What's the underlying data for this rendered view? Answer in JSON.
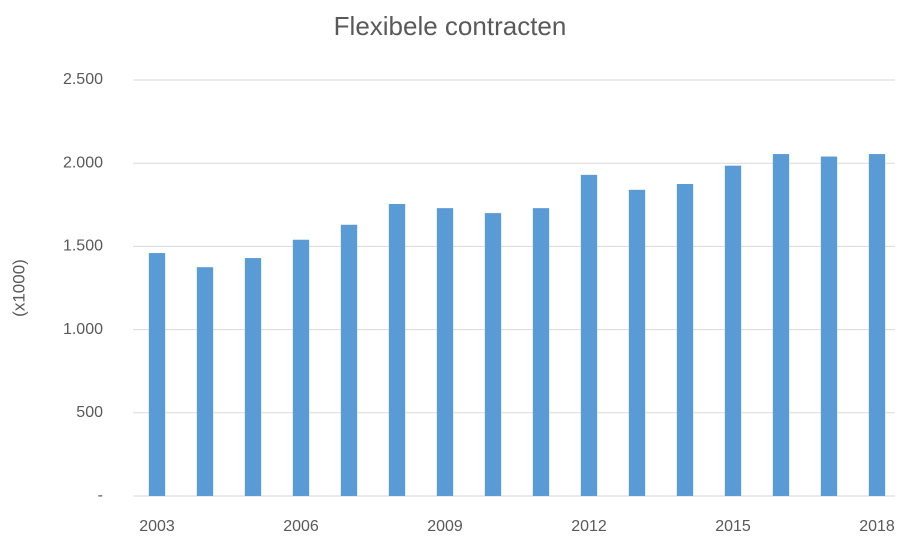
{
  "chart_data": {
    "type": "bar",
    "title": "Flexibele contracten",
    "y_label": "(x1000)",
    "categories": [
      "2003",
      null,
      null,
      "2006",
      null,
      null,
      "2009",
      null,
      null,
      "2012",
      null,
      null,
      "2015",
      null,
      null,
      "2018"
    ],
    "values": [
      1460,
      1375,
      1430,
      1540,
      1630,
      1755,
      1730,
      1700,
      1730,
      1930,
      1840,
      1875,
      1985,
      2055,
      2040,
      2055
    ],
    "color": "#5b9bd5",
    "ylim": [
      0,
      2500
    ],
    "yticks": [
      {
        "value": 0,
        "label": "-"
      },
      500,
      {
        "value": 1000,
        "label": "1.000"
      },
      {
        "value": 1500,
        "label": "1.500"
      },
      {
        "value": 2000,
        "label": "2.000"
      },
      {
        "value": 2500,
        "label": "2.500"
      }
    ],
    "grid": true
  }
}
